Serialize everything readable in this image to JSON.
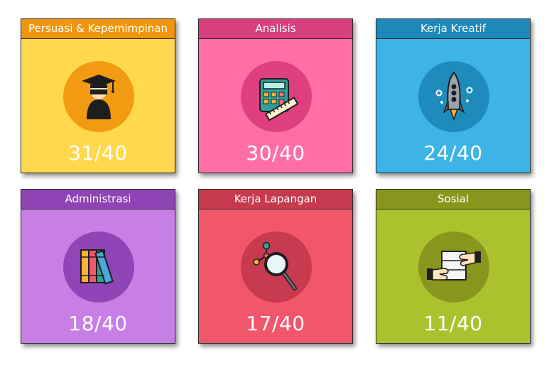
{
  "cards": [
    {
      "title": "Persuasi & Kepemimpinan",
      "score": "31/40",
      "icon": "graduate-icon",
      "colors": {
        "header": "#f0960e",
        "body": "#ffd84d",
        "circle": "#f29a12"
      }
    },
    {
      "title": "Analisis",
      "score": "30/40",
      "icon": "calculator-icon",
      "colors": {
        "header": "#d93f7d",
        "body": "#ff6fa6",
        "circle": "#dd3f7f"
      }
    },
    {
      "title": "Kerja Kreatif",
      "score": "24/40",
      "icon": "rocket-icon",
      "colors": {
        "header": "#1e88b8",
        "body": "#3db3e6",
        "circle": "#1e8bbd"
      }
    },
    {
      "title": "Administrasi",
      "score": "18/40",
      "icon": "books-icon",
      "colors": {
        "header": "#8e44b5",
        "body": "#c77fe6",
        "circle": "#8f45b5"
      }
    },
    {
      "title": "Kerja Lapangan",
      "score": "17/40",
      "icon": "magnifier-icon",
      "colors": {
        "header": "#c73a4d",
        "body": "#f2566b",
        "circle": "#c73a4f"
      }
    },
    {
      "title": "Sosial",
      "score": "11/40",
      "icon": "handshake-icon",
      "colors": {
        "header": "#88961b",
        "body": "#abc22e",
        "circle": "#87961c"
      }
    }
  ]
}
